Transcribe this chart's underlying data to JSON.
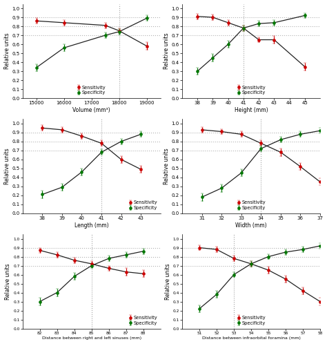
{
  "plots": [
    {
      "xlabel": "Volume (mm³)",
      "xticks": [
        15000,
        16000,
        17000,
        18000,
        19000
      ],
      "xlim": [
        14500,
        19500
      ],
      "vline": 18000,
      "legend_loc": "lower center",
      "sensitivity": {
        "x": [
          15000,
          16000,
          17500,
          18000,
          19000
        ],
        "y": [
          0.86,
          0.84,
          0.81,
          0.75,
          0.58
        ],
        "yerr": [
          0.03,
          0.03,
          0.03,
          0.03,
          0.04
        ]
      },
      "specificity": {
        "x": [
          15000,
          16000,
          17500,
          18000,
          19000
        ],
        "y": [
          0.34,
          0.56,
          0.7,
          0.74,
          0.89
        ],
        "yerr": [
          0.04,
          0.04,
          0.03,
          0.03,
          0.03
        ]
      }
    },
    {
      "xlabel": "Height (mm)",
      "xticks": [
        38,
        39,
        40,
        41,
        42,
        43,
        44,
        45
      ],
      "xlim": [
        37,
        46
      ],
      "vline": 41,
      "legend_loc": "lower center",
      "sensitivity": {
        "x": [
          38,
          39,
          40,
          41,
          42,
          43,
          45
        ],
        "y": [
          0.91,
          0.9,
          0.84,
          0.78,
          0.65,
          0.65,
          0.35
        ],
        "yerr": [
          0.03,
          0.03,
          0.03,
          0.03,
          0.03,
          0.04,
          0.04
        ]
      },
      "specificity": {
        "x": [
          38,
          39,
          40,
          41,
          42,
          43,
          45
        ],
        "y": [
          0.3,
          0.45,
          0.6,
          0.78,
          0.83,
          0.84,
          0.92
        ],
        "yerr": [
          0.04,
          0.04,
          0.04,
          0.03,
          0.03,
          0.03,
          0.03
        ]
      }
    },
    {
      "xlabel": "Length (mm)",
      "xticks": [
        38,
        39,
        40,
        41,
        42,
        43
      ],
      "xlim": [
        37,
        44
      ],
      "vline": 41,
      "legend_loc": "lower right",
      "sensitivity": {
        "x": [
          38,
          39,
          40,
          41,
          42,
          43
        ],
        "y": [
          0.95,
          0.93,
          0.86,
          0.78,
          0.6,
          0.49
        ],
        "yerr": [
          0.03,
          0.03,
          0.03,
          0.03,
          0.04,
          0.04
        ]
      },
      "specificity": {
        "x": [
          38,
          39,
          40,
          41,
          42,
          43
        ],
        "y": [
          0.21,
          0.29,
          0.46,
          0.68,
          0.8,
          0.88
        ],
        "yerr": [
          0.04,
          0.04,
          0.04,
          0.03,
          0.03,
          0.03
        ]
      }
    },
    {
      "xlabel": "Width (mm)",
      "xticks": [
        31,
        32,
        33,
        34,
        35,
        36,
        37
      ],
      "xlim": [
        30,
        37
      ],
      "vline": 34,
      "legend_loc": "lower center",
      "sensitivity": {
        "x": [
          31,
          32,
          33,
          34,
          35,
          36,
          37
        ],
        "y": [
          0.93,
          0.91,
          0.88,
          0.78,
          0.68,
          0.52,
          0.35
        ],
        "yerr": [
          0.03,
          0.03,
          0.03,
          0.03,
          0.04,
          0.04,
          0.04
        ]
      },
      "specificity": {
        "x": [
          31,
          32,
          33,
          34,
          35,
          36,
          37
        ],
        "y": [
          0.18,
          0.28,
          0.45,
          0.72,
          0.82,
          0.88,
          0.92
        ],
        "yerr": [
          0.04,
          0.04,
          0.04,
          0.03,
          0.03,
          0.03,
          0.03
        ]
      }
    },
    {
      "xlabel": "Distance between right and left sinuses (mm)",
      "xticks": [
        82,
        83,
        84,
        85,
        86,
        87,
        88
      ],
      "xlim": [
        81,
        89
      ],
      "vline": 85,
      "legend_loc": "lower right",
      "sensitivity": {
        "x": [
          82,
          83,
          84,
          85,
          86,
          87,
          88
        ],
        "y": [
          0.87,
          0.82,
          0.76,
          0.72,
          0.67,
          0.63,
          0.61
        ],
        "yerr": [
          0.03,
          0.03,
          0.03,
          0.03,
          0.03,
          0.04,
          0.04
        ]
      },
      "specificity": {
        "x": [
          82,
          83,
          84,
          85,
          86,
          87,
          88
        ],
        "y": [
          0.3,
          0.4,
          0.58,
          0.7,
          0.78,
          0.82,
          0.86
        ],
        "yerr": [
          0.04,
          0.04,
          0.04,
          0.03,
          0.03,
          0.03,
          0.03
        ]
      }
    },
    {
      "xlabel": "Distance between infraorbital foramina (mm)",
      "xticks": [
        51,
        52,
        53,
        54,
        55,
        56,
        57,
        58
      ],
      "xlim": [
        50,
        58
      ],
      "vline": 53,
      "legend_loc": "lower center",
      "sensitivity": {
        "x": [
          51,
          52,
          53,
          54,
          55,
          56,
          57,
          58
        ],
        "y": [
          0.9,
          0.88,
          0.78,
          0.72,
          0.65,
          0.55,
          0.42,
          0.3
        ],
        "yerr": [
          0.03,
          0.03,
          0.03,
          0.03,
          0.04,
          0.04,
          0.04,
          0.04
        ]
      },
      "specificity": {
        "x": [
          51,
          52,
          53,
          54,
          55,
          56,
          57,
          58
        ],
        "y": [
          0.22,
          0.38,
          0.6,
          0.72,
          0.8,
          0.85,
          0.88,
          0.92
        ],
        "yerr": [
          0.04,
          0.04,
          0.03,
          0.03,
          0.03,
          0.03,
          0.03,
          0.03
        ]
      }
    }
  ],
  "sensitivity_color": "#cc0000",
  "specificity_color": "#007700",
  "line_color": "#222222",
  "vline_color": "#999999",
  "grid_color": "#aaaaaa",
  "ylabel": "Relative units",
  "ylim": [
    0.0,
    1.05
  ],
  "yticks": [
    0.0,
    0.1,
    0.2,
    0.3,
    0.4,
    0.5,
    0.6,
    0.7,
    0.8,
    0.9,
    1.0
  ]
}
